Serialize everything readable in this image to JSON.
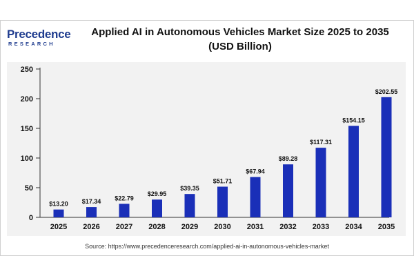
{
  "logo": {
    "name": "Precedence",
    "sub": "RESEARCH"
  },
  "source": "Source: https://www.precedenceresearch.com/applied-ai-in-autonomous-vehicles-market",
  "colors": {
    "bar": "#1a2fb8",
    "axis": "#333333",
    "panel": "#f2f2f2",
    "brand": "#1f3c8f"
  },
  "chart_data": {
    "type": "bar",
    "title_line1": "Applied AI in Autonomous Vehicles Market Size 2025 to 2035",
    "title_line2": "(USD Billion)",
    "xlabel": "",
    "ylabel": "",
    "ylim": [
      0,
      250
    ],
    "yticks": [
      0,
      50,
      100,
      150,
      200,
      250
    ],
    "categories": [
      "2025",
      "2026",
      "2027",
      "2028",
      "2029",
      "2030",
      "2031",
      "2032",
      "2033",
      "2034",
      "2035"
    ],
    "values": [
      13.2,
      17.34,
      22.79,
      29.95,
      39.35,
      51.71,
      67.94,
      89.28,
      117.31,
      154.15,
      202.55
    ],
    "data_labels": [
      "$13.20",
      "$17.34",
      "$22.79",
      "$29.95",
      "$39.35",
      "$51.71",
      "$67.94",
      "$89.28",
      "$117.31",
      "$154.15",
      "$202.55"
    ],
    "grid": false,
    "legend": "none"
  }
}
